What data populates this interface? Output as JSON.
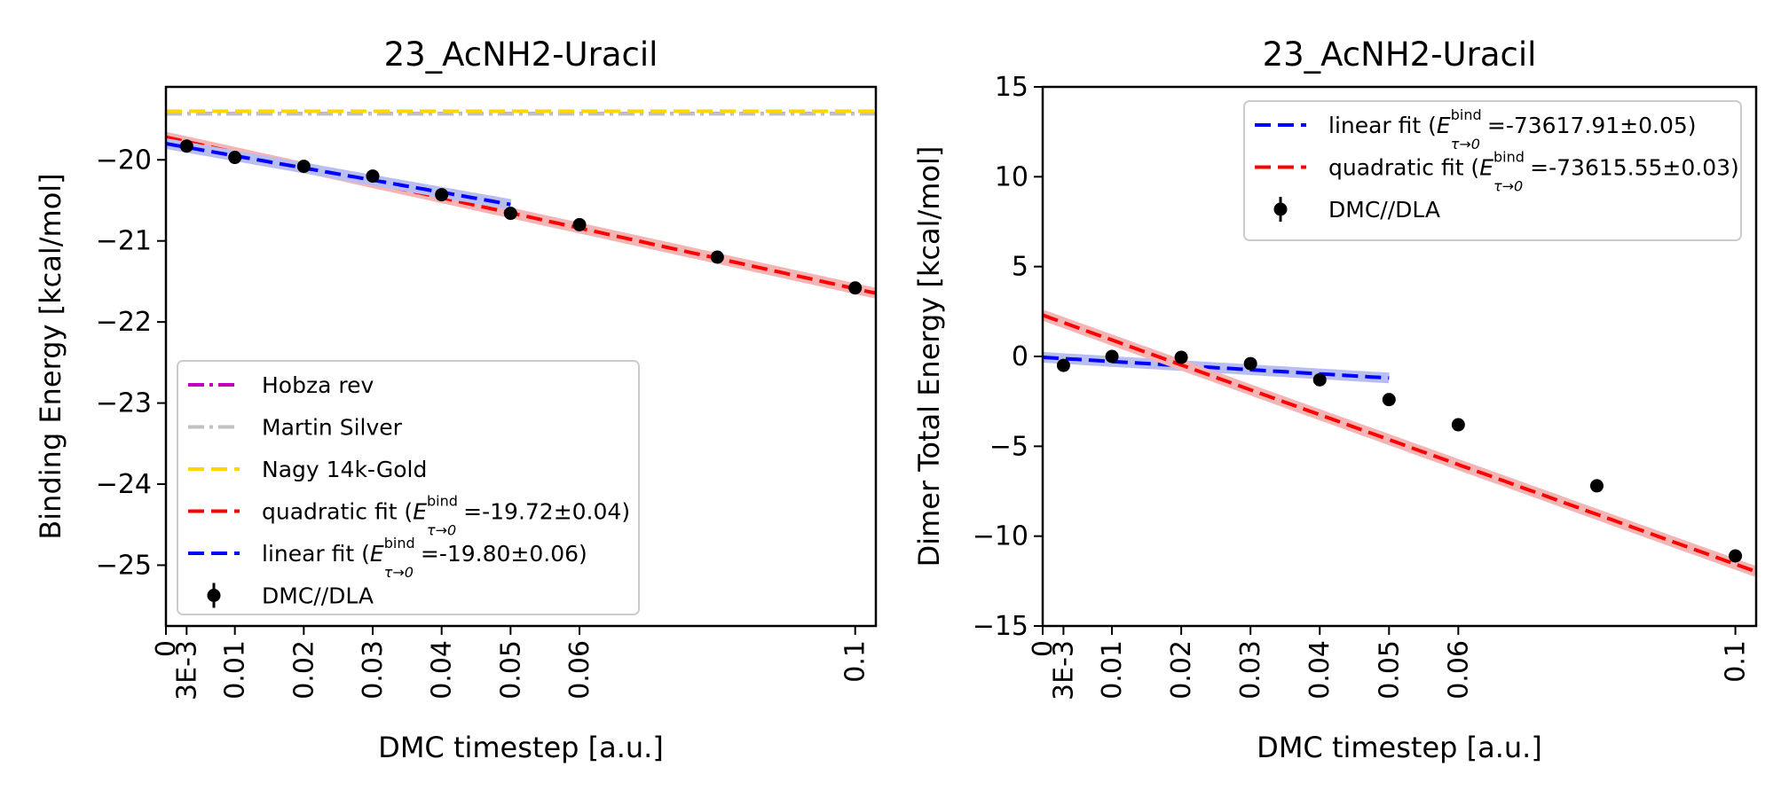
{
  "chart_data": [
    {
      "type": "line",
      "title": "23_AcNH2-Uracil",
      "xlabel": "DMC timestep [a.u.]",
      "ylabel": "Binding Energy [kcal/mol]",
      "xlim": [
        0,
        0.103
      ],
      "ylim": [
        -25.75,
        -19.1
      ],
      "x_ticks": [
        0,
        0.003,
        0.01,
        0.02,
        0.03,
        0.04,
        0.05,
        0.06,
        0.1
      ],
      "x_tick_labels": [
        "0",
        "3E-3",
        "0.01",
        "0.02",
        "0.03",
        "0.04",
        "0.05",
        "0.06",
        "0.1"
      ],
      "y_ticks": [
        -25,
        -24,
        -23,
        -22,
        -21,
        -20
      ],
      "y_tick_labels": [
        "−25",
        "−24",
        "−23",
        "−22",
        "−21",
        "−20"
      ],
      "legend_position": "lower-left",
      "reference_lines": [
        {
          "name": "Hobza rev",
          "y": -19.43,
          "color": "#bf00bf",
          "style": "dashdot"
        },
        {
          "name": "Martin Silver",
          "y": -19.43,
          "color": "#c0c0c0",
          "style": "dashdot"
        },
        {
          "name": "Nagy 14k-Gold",
          "y": -19.4,
          "color": "#ffd700",
          "style": "dashed"
        }
      ],
      "fits": [
        {
          "name": "quadratic fit",
          "legend_prefix": "quadratic fit (",
          "legend_value": " =-19.72±0.04)",
          "color": "#ff0000",
          "band_color": "#f4b4b4",
          "coefficients": [
            -19.72,
            -18.69,
            0
          ],
          "x_range": [
            0,
            0.103
          ]
        },
        {
          "name": "linear fit",
          "legend_prefix": "linear fit (",
          "legend_value": " =-19.80±0.06)",
          "color": "#0000ff",
          "band_color": "#b8bff0",
          "coefficients": [
            -19.8,
            -15.0
          ],
          "x_range": [
            0,
            0.05
          ]
        }
      ],
      "data_series": {
        "name": "DMC//DLA",
        "color": "#000000",
        "x": [
          0.003,
          0.01,
          0.02,
          0.03,
          0.04,
          0.05,
          0.06,
          0.08,
          0.1
        ],
        "y": [
          -19.83,
          -19.97,
          -20.08,
          -20.2,
          -20.43,
          -20.66,
          -20.8,
          -21.2,
          -21.58
        ]
      }
    },
    {
      "type": "line",
      "title": "23_AcNH2-Uracil",
      "xlabel": "DMC timestep [a.u.]",
      "ylabel": "Dimer Total Energy [kcal/mol]",
      "xlim": [
        0,
        0.103
      ],
      "ylim": [
        -15,
        15
      ],
      "x_ticks": [
        0,
        0.003,
        0.01,
        0.02,
        0.03,
        0.04,
        0.05,
        0.06,
        0.1
      ],
      "x_tick_labels": [
        "0",
        "3E-3",
        "0.01",
        "0.02",
        "0.03",
        "0.04",
        "0.05",
        "0.06",
        "0.1"
      ],
      "y_ticks": [
        -15,
        -10,
        -5,
        0,
        5,
        10,
        15
      ],
      "y_tick_labels": [
        "−15",
        "−10",
        "−5",
        "0",
        "5",
        "10",
        "15"
      ],
      "legend_position": "upper-right",
      "reference_lines": [],
      "fits": [
        {
          "name": "linear fit",
          "legend_prefix": "linear fit (",
          "legend_value": " =-73617.91±0.05)",
          "color": "#0000ff",
          "band_color": "#b8bff0",
          "coefficients": [
            -0.05,
            -23.0
          ],
          "x_range": [
            0,
            0.05
          ]
        },
        {
          "name": "quadratic fit",
          "legend_prefix": "quadratic fit (",
          "legend_value": " =-73615.55±0.03)",
          "color": "#ff0000",
          "band_color": "#f4b4b4",
          "coefficients": [
            2.3,
            -138.6,
            0
          ],
          "x_range": [
            0,
            0.103
          ]
        }
      ],
      "data_series": {
        "name": "DMC//DLA",
        "color": "#000000",
        "x": [
          0.003,
          0.01,
          0.02,
          0.03,
          0.04,
          0.05,
          0.06,
          0.08,
          0.1
        ],
        "y": [
          -0.5,
          0.0,
          -0.05,
          -0.4,
          -1.3,
          -2.4,
          -3.8,
          -7.2,
          -11.1
        ]
      }
    }
  ],
  "legend_symbol": {
    "base": "E",
    "superscript": "bind",
    "subscript": "τ→0"
  }
}
